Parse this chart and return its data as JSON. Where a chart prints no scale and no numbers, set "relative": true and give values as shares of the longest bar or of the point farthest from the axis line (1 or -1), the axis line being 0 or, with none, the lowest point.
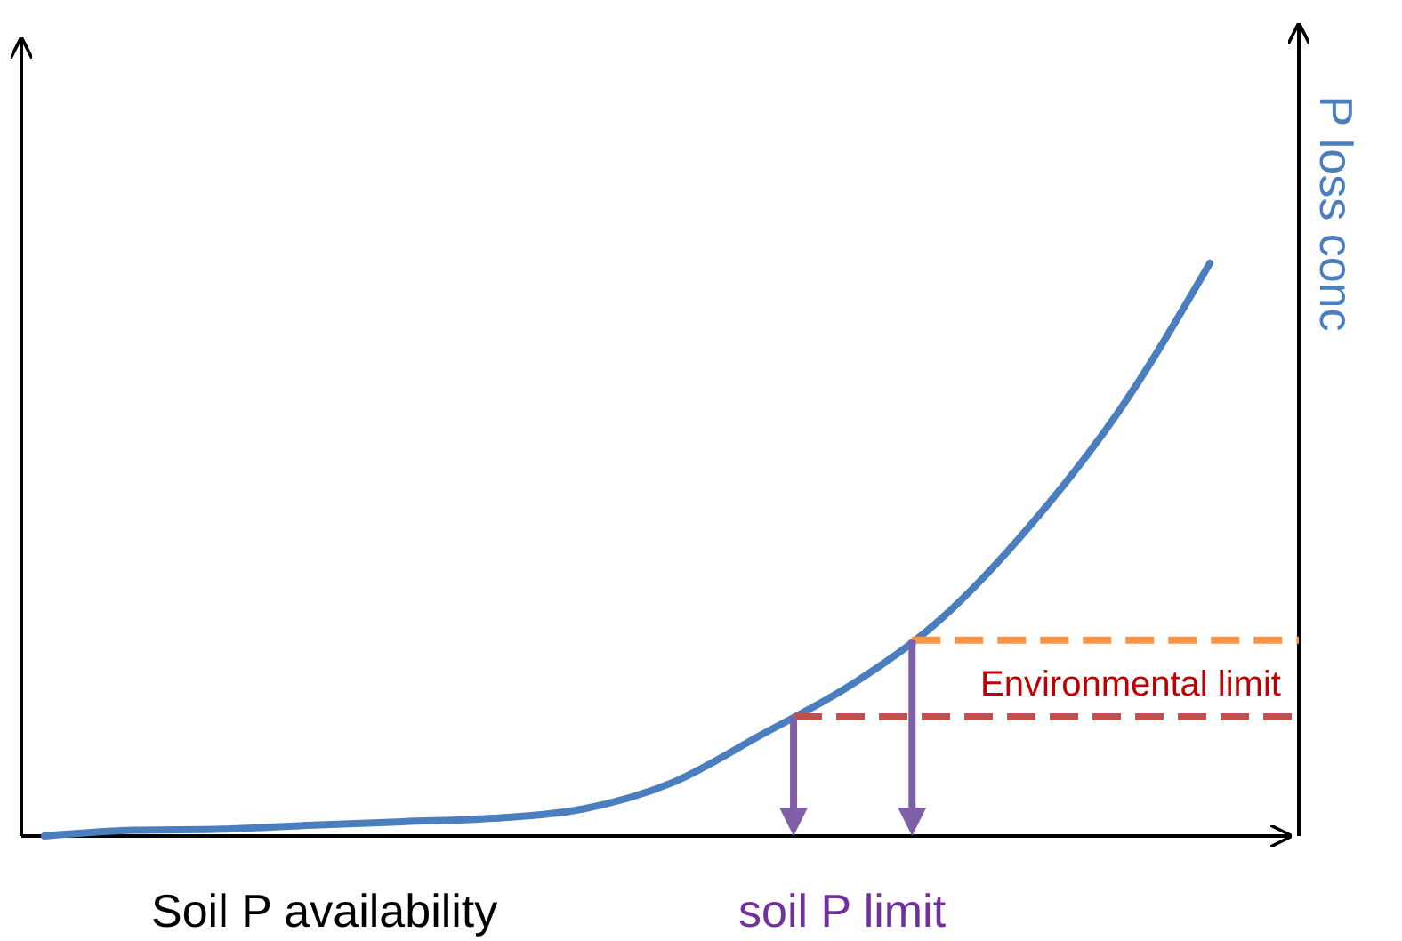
{
  "chart_data": {
    "type": "line",
    "relative": true,
    "xlabel": "Soil P availability",
    "ylabel": "P loss conc",
    "categories": [
      null,
      null,
      null,
      null,
      null,
      null,
      null,
      null,
      null,
      null,
      null,
      null,
      null,
      null
    ],
    "series": [
      {
        "color": "#4a7ebf",
        "values": [
          0,
          0.01,
          0.012,
          0.019,
          0.025,
          0.031,
          0.047,
          0.093,
          0.177,
          0.264,
          0.379,
          0.543,
          0.745,
          1
        ]
      }
    ],
    "ref_lines": [
      {
        "axis": "y",
        "value": 0.208,
        "label": "Environmental limit",
        "color": "#c0504d",
        "line_style": "dashed"
      },
      {
        "axis": "y",
        "value": 0.342,
        "label": null,
        "color": "#f79646",
        "line_style": "dashed"
      }
    ],
    "annotations": [
      "soil P limit"
    ]
  }
}
